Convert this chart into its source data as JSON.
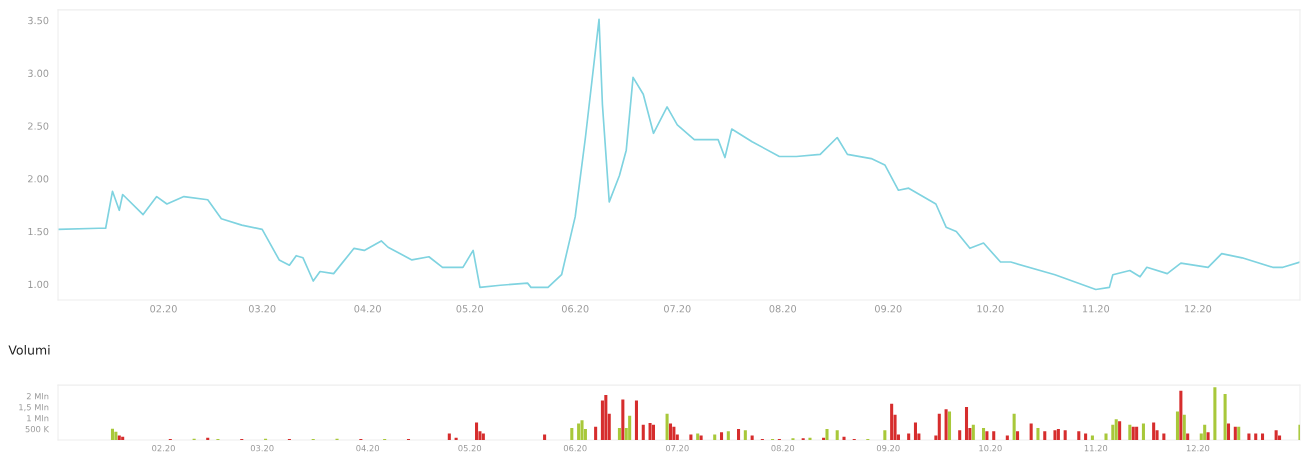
{
  "chart_data": [
    {
      "type": "line",
      "xlim": [
        "2020-01-01",
        "2020-12-31"
      ],
      "ylim": [
        0.85,
        3.6
      ],
      "yticks": [
        {
          "value": 1.0,
          "label": "1.00"
        },
        {
          "value": 1.5,
          "label": "1.50"
        },
        {
          "value": 2.0,
          "label": "2.00"
        },
        {
          "value": 2.5,
          "label": "2.50"
        },
        {
          "value": 3.0,
          "label": "3.00"
        },
        {
          "value": 3.5,
          "label": "3.50"
        }
      ],
      "xticks": [
        {
          "value": "2020-02-01",
          "label": "02.20"
        },
        {
          "value": "2020-03-01",
          "label": "03.20"
        },
        {
          "value": "2020-04-01",
          "label": "04.20"
        },
        {
          "value": "2020-05-01",
          "label": "05.20"
        },
        {
          "value": "2020-06-01",
          "label": "06.20"
        },
        {
          "value": "2020-07-01",
          "label": "07.20"
        },
        {
          "value": "2020-08-01",
          "label": "08.20"
        },
        {
          "value": "2020-09-01",
          "label": "09.20"
        },
        {
          "value": "2020-10-01",
          "label": "10.20"
        },
        {
          "value": "2020-11-01",
          "label": "11.20"
        },
        {
          "value": "2020-12-01",
          "label": "12.20"
        }
      ],
      "grid": false,
      "legend": false,
      "marker": "none",
      "line_style": "solid",
      "series": [
        {
          "color": "#7fd3e0",
          "x": [
            "2020-01-01",
            "2020-01-13",
            "2020-01-15",
            "2020-01-17",
            "2020-01-19",
            "2020-01-20",
            "2020-01-26",
            "2020-01-30",
            "2020-02-02",
            "2020-02-07",
            "2020-02-14",
            "2020-02-18",
            "2020-02-24",
            "2020-03-01",
            "2020-03-06",
            "2020-03-09",
            "2020-03-11",
            "2020-03-13",
            "2020-03-16",
            "2020-03-18",
            "2020-03-22",
            "2020-03-28",
            "2020-03-31",
            "2020-04-05",
            "2020-04-07",
            "2020-04-14",
            "2020-04-19",
            "2020-04-23",
            "2020-04-29",
            "2020-05-02",
            "2020-05-04",
            "2020-05-10",
            "2020-05-18",
            "2020-05-19",
            "2020-05-24",
            "2020-05-28",
            "2020-06-01",
            "2020-06-04",
            "2020-06-08",
            "2020-06-09",
            "2020-06-11",
            "2020-06-14",
            "2020-06-16",
            "2020-06-18",
            "2020-06-21",
            "2020-06-24",
            "2020-06-28",
            "2020-07-01",
            "2020-07-06",
            "2020-07-13",
            "2020-07-15",
            "2020-07-17",
            "2020-07-23",
            "2020-07-31",
            "2020-08-05",
            "2020-08-12",
            "2020-08-17",
            "2020-08-20",
            "2020-08-27",
            "2020-08-31",
            "2020-09-04",
            "2020-09-07",
            "2020-09-15",
            "2020-09-18",
            "2020-09-21",
            "2020-09-25",
            "2020-09-29",
            "2020-10-04",
            "2020-10-07",
            "2020-10-20",
            "2020-11-01",
            "2020-11-05",
            "2020-11-06",
            "2020-11-11",
            "2020-11-14",
            "2020-11-16",
            "2020-11-22",
            "2020-11-26",
            "2020-12-04",
            "2020-12-08",
            "2020-12-14",
            "2020-12-23",
            "2020-12-26",
            "2020-12-31"
          ],
          "values": [
            1.52,
            1.53,
            1.53,
            1.88,
            1.7,
            1.85,
            1.66,
            1.83,
            1.76,
            1.83,
            1.8,
            1.62,
            1.56,
            1.52,
            1.23,
            1.18,
            1.27,
            1.25,
            1.03,
            1.12,
            1.1,
            1.34,
            1.32,
            1.41,
            1.35,
            1.23,
            1.26,
            1.16,
            1.16,
            1.32,
            0.97,
            0.99,
            1.01,
            0.97,
            0.97,
            1.09,
            1.64,
            2.39,
            3.51,
            2.7,
            1.78,
            2.03,
            2.27,
            2.96,
            2.8,
            2.43,
            2.68,
            2.51,
            2.37,
            2.37,
            2.2,
            2.47,
            2.35,
            2.21,
            2.21,
            2.23,
            2.39,
            2.23,
            2.19,
            2.13,
            1.89,
            1.91,
            1.76,
            1.54,
            1.5,
            1.34,
            1.39,
            1.21,
            1.21,
            1.09,
            0.95,
            0.97,
            1.09,
            1.13,
            1.07,
            1.16,
            1.1,
            1.2,
            1.16,
            1.29,
            1.25,
            1.16,
            1.16,
            1.21
          ]
        }
      ]
    },
    {
      "type": "bar",
      "title": "Volumi",
      "xlim": [
        "2020-01-01",
        "2020-12-31"
      ],
      "ylim": [
        0,
        2.5
      ],
      "yticks": [
        {
          "value": 0.5,
          "label": "500 K"
        },
        {
          "value": 1.0,
          "label": "1 Mln"
        },
        {
          "value": 1.5,
          "label": "1,5 Mln"
        },
        {
          "value": 2.0,
          "label": "2 Mln"
        }
      ],
      "xticks": [
        {
          "value": "2020-02-01",
          "label": "02.20"
        },
        {
          "value": "2020-03-01",
          "label": "03.20"
        },
        {
          "value": "2020-04-01",
          "label": "04.20"
        },
        {
          "value": "2020-05-01",
          "label": "05.20"
        },
        {
          "value": "2020-06-01",
          "label": "06.20"
        },
        {
          "value": "2020-07-01",
          "label": "07.20"
        },
        {
          "value": "2020-08-01",
          "label": "08.20"
        },
        {
          "value": "2020-09-01",
          "label": "09.20"
        },
        {
          "value": "2020-10-01",
          "label": "10.20"
        },
        {
          "value": "2020-11-01",
          "label": "11.20"
        },
        {
          "value": "2020-12-01",
          "label": "12.20"
        }
      ],
      "grid": false,
      "legend": false,
      "x": [
        "2020-01-17",
        "2020-01-18",
        "2020-01-19",
        "2020-01-20",
        "2020-02-03",
        "2020-02-10",
        "2020-02-14",
        "2020-02-17",
        "2020-02-24",
        "2020-03-02",
        "2020-03-09",
        "2020-03-16",
        "2020-03-23",
        "2020-03-30",
        "2020-04-06",
        "2020-04-13",
        "2020-04-25",
        "2020-04-27",
        "2020-05-03",
        "2020-05-04",
        "2020-05-05",
        "2020-05-23",
        "2020-05-31",
        "2020-06-02",
        "2020-06-03",
        "2020-06-04",
        "2020-06-07",
        "2020-06-09",
        "2020-06-10",
        "2020-06-11",
        "2020-06-14",
        "2020-06-15",
        "2020-06-16",
        "2020-06-17",
        "2020-06-19",
        "2020-06-21",
        "2020-06-23",
        "2020-06-24",
        "2020-06-28",
        "2020-06-29",
        "2020-06-30",
        "2020-07-01",
        "2020-07-05",
        "2020-07-07",
        "2020-07-08",
        "2020-07-12",
        "2020-07-14",
        "2020-07-16",
        "2020-07-19",
        "2020-07-21",
        "2020-07-23",
        "2020-07-26",
        "2020-07-29",
        "2020-07-31",
        "2020-08-04",
        "2020-08-07",
        "2020-08-09",
        "2020-08-13",
        "2020-08-14",
        "2020-08-17",
        "2020-08-19",
        "2020-08-22",
        "2020-08-26",
        "2020-08-31",
        "2020-09-02",
        "2020-09-03",
        "2020-09-04",
        "2020-09-07",
        "2020-09-09",
        "2020-09-10",
        "2020-09-15",
        "2020-09-16",
        "2020-09-18",
        "2020-09-19",
        "2020-09-22",
        "2020-09-24",
        "2020-09-25",
        "2020-09-26",
        "2020-09-29",
        "2020-09-30",
        "2020-10-02",
        "2020-10-06",
        "2020-10-08",
        "2020-10-09",
        "2020-10-13",
        "2020-10-15",
        "2020-10-17",
        "2020-10-20",
        "2020-10-21",
        "2020-10-23",
        "2020-10-27",
        "2020-10-29",
        "2020-10-31",
        "2020-11-04",
        "2020-11-06",
        "2020-11-07",
        "2020-11-08",
        "2020-11-11",
        "2020-11-12",
        "2020-11-13",
        "2020-11-15",
        "2020-11-18",
        "2020-11-19",
        "2020-11-21",
        "2020-11-25",
        "2020-11-26",
        "2020-11-27",
        "2020-11-28",
        "2020-12-02",
        "2020-12-03",
        "2020-12-04",
        "2020-12-06",
        "2020-12-09",
        "2020-12-10",
        "2020-12-12",
        "2020-12-13",
        "2020-12-16",
        "2020-12-18",
        "2020-12-20",
        "2020-12-24",
        "2020-12-25",
        "2020-12-31"
      ],
      "values": [
        0.51,
        0.38,
        0.2,
        0.15,
        0.05,
        0.06,
        0.1,
        0.05,
        0.05,
        0.06,
        0.05,
        0.05,
        0.06,
        0.05,
        0.05,
        0.05,
        0.3,
        0.1,
        0.8,
        0.4,
        0.3,
        0.25,
        0.55,
        0.75,
        0.9,
        0.5,
        0.6,
        1.8,
        2.05,
        1.2,
        0.55,
        1.85,
        0.55,
        1.1,
        1.8,
        0.7,
        0.78,
        0.7,
        1.2,
        0.75,
        0.6,
        0.25,
        0.25,
        0.3,
        0.2,
        0.25,
        0.35,
        0.4,
        0.5,
        0.45,
        0.2,
        0.05,
        0.05,
        0.05,
        0.08,
        0.08,
        0.1,
        0.1,
        0.5,
        0.45,
        0.15,
        0.05,
        0.05,
        0.45,
        1.65,
        1.15,
        0.25,
        0.3,
        0.8,
        0.3,
        0.2,
        1.2,
        1.4,
        1.3,
        0.45,
        1.5,
        0.55,
        0.7,
        0.55,
        0.4,
        0.4,
        0.2,
        1.2,
        0.4,
        0.75,
        0.55,
        0.4,
        0.45,
        0.5,
        0.45,
        0.4,
        0.3,
        0.2,
        0.3,
        0.7,
        0.95,
        0.85,
        0.7,
        0.6,
        0.6,
        0.75,
        0.8,
        0.45,
        0.3,
        1.3,
        2.25,
        1.15,
        0.3,
        0.3,
        0.7,
        0.35,
        2.4,
        2.1,
        0.75,
        0.6,
        0.6,
        0.3,
        0.3,
        0.3,
        0.45,
        0.2,
        0.7
      ],
      "colors": [
        "#a8c83a",
        "#a8c83a",
        "#d62d2d",
        "#d62d2d",
        "#d62d2d",
        "#a8c83a",
        "#d62d2d",
        "#a8c83a",
        "#d62d2d",
        "#a8c83a",
        "#d62d2d",
        "#a8c83a",
        "#a8c83a",
        "#d62d2d",
        "#a8c83a",
        "#d62d2d",
        "#d62d2d",
        "#d62d2d",
        "#d62d2d",
        "#d62d2d",
        "#d62d2d",
        "#d62d2d",
        "#a8c83a",
        "#a8c83a",
        "#a8c83a",
        "#a8c83a",
        "#d62d2d",
        "#d62d2d",
        "#d62d2d",
        "#d62d2d",
        "#a8c83a",
        "#d62d2d",
        "#a8c83a",
        "#a8c83a",
        "#d62d2d",
        "#d62d2d",
        "#d62d2d",
        "#d62d2d",
        "#a8c83a",
        "#d62d2d",
        "#d62d2d",
        "#d62d2d",
        "#d62d2d",
        "#a8c83a",
        "#d62d2d",
        "#a8c83a",
        "#d62d2d",
        "#a8c83a",
        "#d62d2d",
        "#a8c83a",
        "#d62d2d",
        "#d62d2d",
        "#a8c83a",
        "#d62d2d",
        "#a8c83a",
        "#d62d2d",
        "#a8c83a",
        "#d62d2d",
        "#a8c83a",
        "#a8c83a",
        "#d62d2d",
        "#d62d2d",
        "#a8c83a",
        "#a8c83a",
        "#d62d2d",
        "#d62d2d",
        "#d62d2d",
        "#d62d2d",
        "#d62d2d",
        "#d62d2d",
        "#d62d2d",
        "#d62d2d",
        "#d62d2d",
        "#a8c83a",
        "#d62d2d",
        "#d62d2d",
        "#d62d2d",
        "#a8c83a",
        "#a8c83a",
        "#d62d2d",
        "#d62d2d",
        "#d62d2d",
        "#a8c83a",
        "#d62d2d",
        "#d62d2d",
        "#a8c83a",
        "#d62d2d",
        "#d62d2d",
        "#d62d2d",
        "#d62d2d",
        "#d62d2d",
        "#d62d2d",
        "#a8c83a",
        "#a8c83a",
        "#a8c83a",
        "#a8c83a",
        "#d62d2d",
        "#a8c83a",
        "#d62d2d",
        "#d62d2d",
        "#a8c83a",
        "#d62d2d",
        "#d62d2d",
        "#d62d2d",
        "#a8c83a",
        "#d62d2d",
        "#a8c83a",
        "#d62d2d",
        "#a8c83a",
        "#a8c83a",
        "#d62d2d",
        "#a8c83a",
        "#a8c83a",
        "#d62d2d",
        "#d62d2d",
        "#a8c83a",
        "#d62d2d",
        "#d62d2d",
        "#d62d2d",
        "#d62d2d",
        "#d62d2d",
        "#a8c83a"
      ]
    }
  ]
}
